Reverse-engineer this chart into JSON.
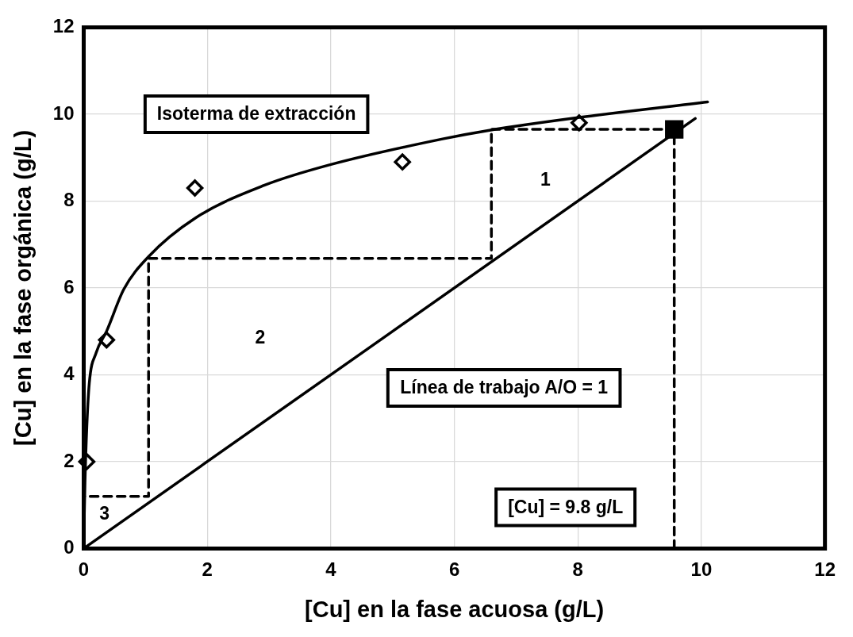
{
  "chart_data": {
    "type": "line",
    "xlabel": "[Cu] en la fase acuosa (g/L)",
    "ylabel": "[Cu] en la fase orgánica (g/L)",
    "xlim": [
      0,
      12
    ],
    "xticks": [
      0,
      2,
      4,
      6,
      8,
      10,
      12
    ],
    "ylim": [
      0,
      12
    ],
    "yticks": [
      0,
      2,
      4,
      6,
      8,
      10,
      12
    ],
    "grid": true,
    "legend": false,
    "series": [
      {
        "color": "#000000",
        "line_style": "solid",
        "marker": "none",
        "x": [
          0,
          0.02,
          0.05,
          0.09,
          0.2,
          0.37,
          0.65,
          1.05,
          1.81,
          2.92,
          4.0,
          5.81,
          6.57,
          8.0,
          10.1
        ],
        "values": [
          0.1,
          1.5,
          2.8,
          3.8,
          4.5,
          5.0,
          5.97,
          6.72,
          7.61,
          8.36,
          8.84,
          9.43,
          9.63,
          9.92,
          10.28
        ]
      },
      {
        "type": "scatter",
        "color": "#000000",
        "marker": "diamond",
        "x": [
          0.05,
          0.37,
          1.8,
          5.16,
          8.02
        ],
        "values": [
          2.0,
          4.8,
          8.3,
          8.9,
          9.8
        ]
      },
      {
        "color": "#000000",
        "line_style": "solid",
        "marker": "none",
        "x": [
          0,
          9.9
        ],
        "values": [
          0,
          9.9
        ]
      },
      {
        "color": "#000000",
        "line_style": "dashed",
        "marker": "none",
        "x": [
          9.56,
          9.56,
          6.6,
          6.6,
          1.05,
          1.05,
          0
        ],
        "values": [
          0,
          9.65,
          9.65,
          6.68,
          6.68,
          1.2,
          1.2
        ]
      },
      {
        "type": "scatter",
        "color": "#000000",
        "marker": "square",
        "x": [
          9.56
        ],
        "values": [
          9.65
        ]
      }
    ],
    "annotations": [
      "Isoterma de extracción",
      "Línea de trabajo A/O = 1",
      "[Cu] = 9.8 g/L",
      "1",
      "2",
      "3"
    ]
  }
}
